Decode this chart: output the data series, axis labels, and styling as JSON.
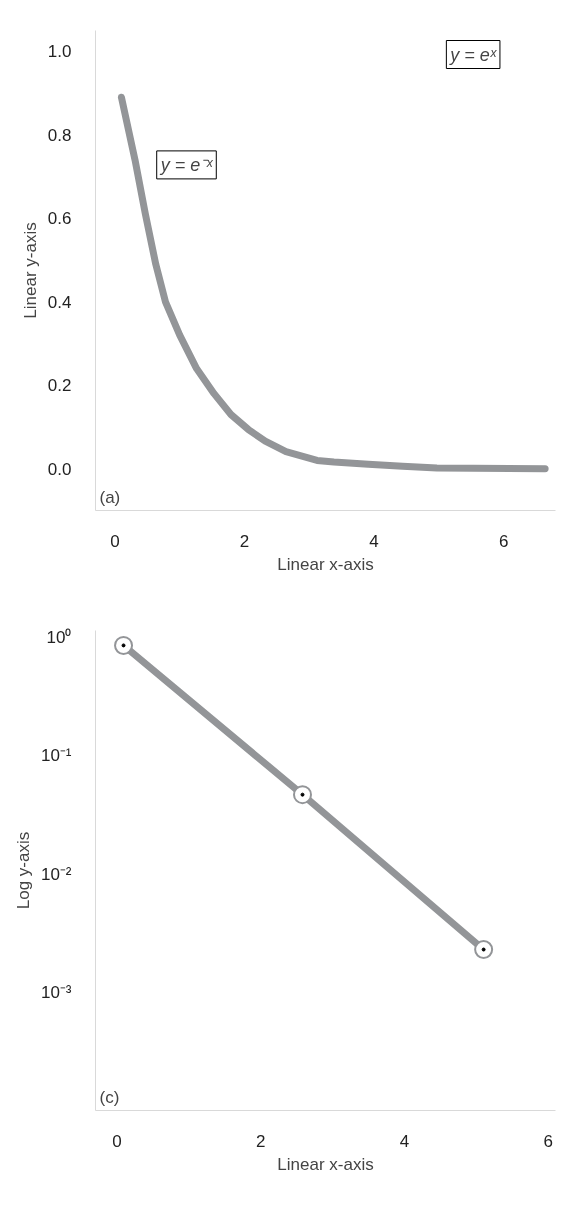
{
  "chart_data": [
    {
      "type": "line",
      "xlabel": "Linear x-axis",
      "ylabel": "Linear y-axis",
      "xlim": [
        -0.3,
        6.8
      ],
      "ylim": [
        -0.1,
        1.05
      ],
      "xticks": [
        0,
        2,
        4,
        6
      ],
      "yticks": [
        {
          "value": 0,
          "label": "0.0"
        },
        {
          "value": 0.2,
          "label": "0.2"
        },
        {
          "value": 0.4,
          "label": "0.4"
        },
        {
          "value": 0.6,
          "label": "0.6"
        },
        {
          "value": 0.8,
          "label": "0.8"
        },
        {
          "value": 1,
          "label": "1.0"
        }
      ],
      "marker": "none",
      "line_style": "solid",
      "series": [
        {
          "color": "#939598",
          "x": [
            0.1,
            0.31,
            0.47,
            0.63,
            0.78,
            1.0,
            1.26,
            1.53,
            1.79,
            2.06,
            2.32,
            2.64,
            3.12,
            3.38,
            3.91,
            4.44,
            4.97,
            6.64
          ],
          "values": [
            0.89,
            0.74,
            0.61,
            0.49,
            0.4,
            0.32,
            0.24,
            0.18,
            0.13,
            0.094,
            0.066,
            0.041,
            0.02,
            0.016,
            0.011,
            0.006,
            0.002,
            0.0
          ]
        }
      ],
      "annotations": [
        "y = e⁻ˣ",
        "y = eˣ",
        "(a)"
      ]
    },
    {
      "type": "line",
      "xlabel": "Linear x-axis",
      "ylabel": "Log y-axis",
      "log": "y",
      "xlim": [
        -0.3,
        6.1
      ],
      "ylim": [
        0.0001,
        1.15
      ],
      "xticks": [
        0,
        2,
        4,
        6
      ],
      "yticks": [
        {
          "value": 1,
          "label": "10⁰"
        },
        {
          "value": 0.1,
          "label": "10⁻¹"
        },
        {
          "value": 0.01,
          "label": "10⁻²"
        },
        {
          "value": 0.001,
          "label": "10⁻³"
        }
      ],
      "marker": "circle",
      "line_style": "solid",
      "series": [
        {
          "color": "#939598",
          "x": [
            0.09,
            2.58,
            5.1
          ],
          "values": [
            0.86,
            0.047,
            0.0023
          ]
        }
      ],
      "annotations": [
        "(c)"
      ]
    }
  ]
}
